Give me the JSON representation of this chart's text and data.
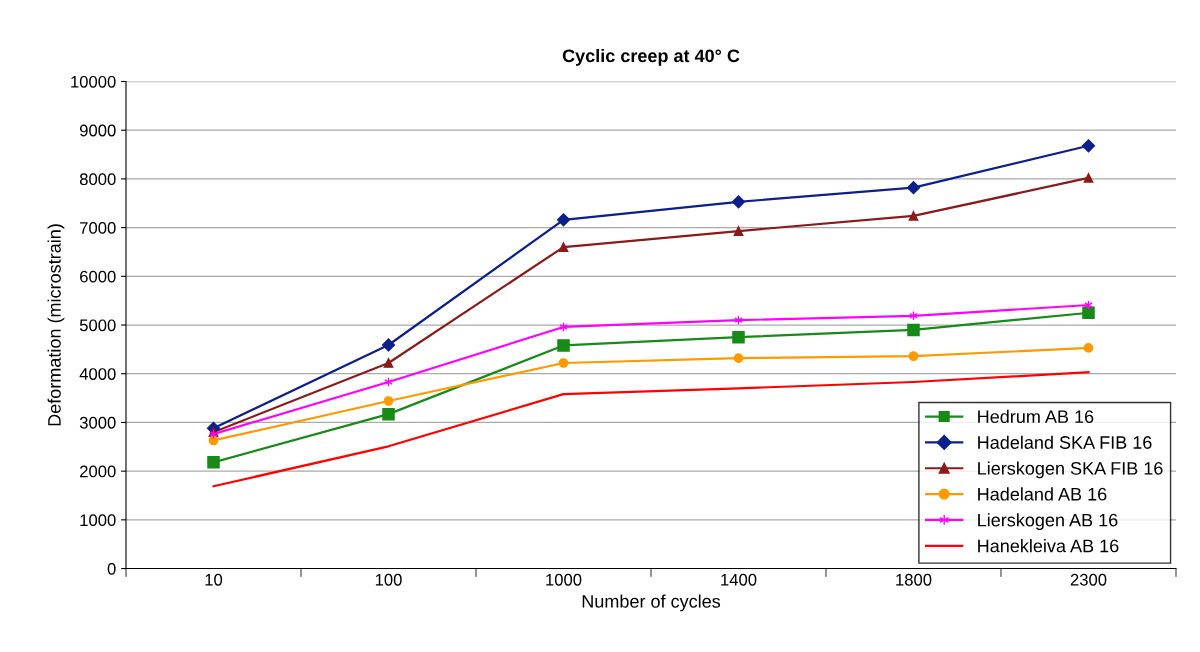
{
  "chart_data": {
    "type": "line",
    "title": "Cyclic creep at 40° C",
    "xlabel": "Number of cycles",
    "ylabel": "Deformation (microstrain)",
    "categories": [
      "10",
      "100",
      "1000",
      "1400",
      "1800",
      "2300"
    ],
    "series": [
      {
        "name": "Hedrum AB 16",
        "color": "#178a17",
        "marker": "square",
        "values": [
          2180,
          3170,
          4580,
          4750,
          4900,
          5250
        ]
      },
      {
        "name": "Hadeland SKA FIB 16",
        "color": "#0c1f8c",
        "marker": "diamond",
        "values": [
          2880,
          4590,
          7160,
          7530,
          7820,
          8680
        ]
      },
      {
        "name": "Lierskogen SKA FIB 16",
        "color": "#8b1a1a",
        "marker": "triangle",
        "values": [
          2800,
          4220,
          6600,
          6930,
          7240,
          8020
        ]
      },
      {
        "name": "Hadeland AB 16",
        "color": "#ff9900",
        "marker": "circle",
        "values": [
          2630,
          3440,
          4220,
          4320,
          4360,
          4530
        ]
      },
      {
        "name": "Lierskogen AB 16",
        "color": "#ff00ff",
        "marker": "cross",
        "values": [
          2760,
          3830,
          4960,
          5100,
          5190,
          5410
        ]
      },
      {
        "name": "Hanekleiva AB 16",
        "color": "#ff0000",
        "marker": "none",
        "values": [
          1690,
          2510,
          3580,
          3700,
          3830,
          4030
        ]
      }
    ],
    "ylim": [
      0,
      10000
    ],
    "yticks": [
      0,
      1000,
      2000,
      3000,
      4000,
      5000,
      6000,
      7000,
      8000,
      9000,
      10000
    ],
    "grid": "y",
    "legend": "bottom right",
    "line_style": "solid"
  }
}
